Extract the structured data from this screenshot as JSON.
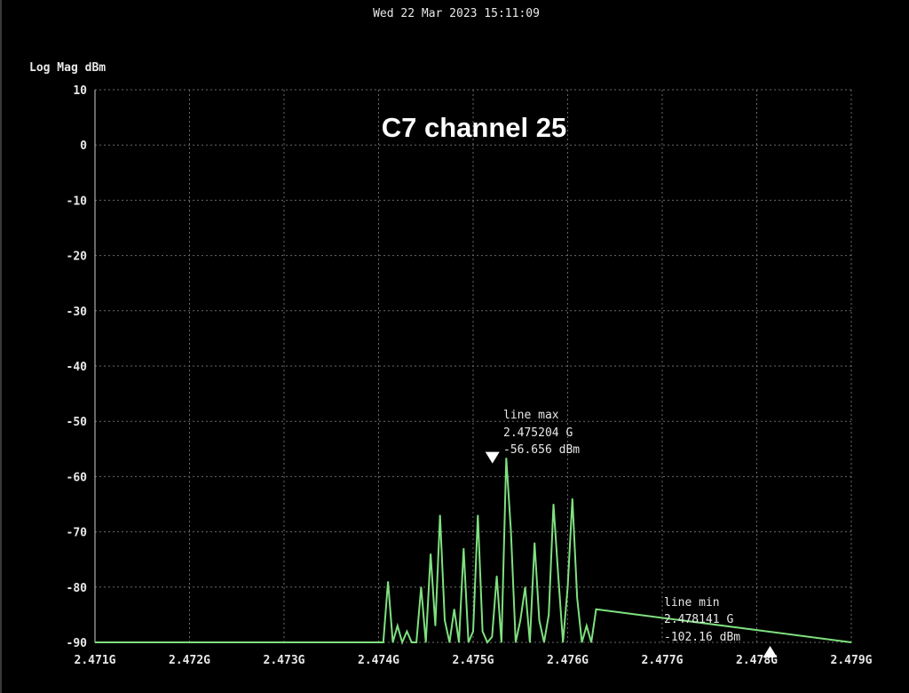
{
  "timestamp": "Wed 22 Mar 2023 15:11:09",
  "colors": {
    "background": "#000000",
    "trace": "#7fe07f",
    "text": "#e8e8e8",
    "grid": "#6a6a6a",
    "marker": "#ffffff"
  },
  "chart_data": {
    "type": "line",
    "title": "C7 channel 25",
    "ylabel": "Log Mag dBm",
    "xlabel": "",
    "xlim": [
      2.471,
      2.479
    ],
    "ylim": [
      -90,
      10
    ],
    "grid": true,
    "x_tick_values": [
      2.471,
      2.472,
      2.473,
      2.474,
      2.475,
      2.476,
      2.477,
      2.478,
      2.479
    ],
    "x_tick_labels": [
      "2.471G",
      "2.472G",
      "2.473G",
      "2.474G",
      "2.475G",
      "2.476G",
      "2.477G",
      "2.478G",
      "2.479G"
    ],
    "y_tick_values": [
      10,
      0,
      -10,
      -20,
      -30,
      -40,
      -50,
      -60,
      -70,
      -80,
      -90
    ],
    "y_tick_labels": [
      "10",
      "0",
      "-10",
      "-20",
      "-30",
      "-40",
      "-50",
      "-60",
      "-70",
      "-80",
      "-90"
    ],
    "series": [
      {
        "x": [
          2.471,
          2.474,
          2.47405,
          2.4741,
          2.47415,
          2.4742,
          2.47425,
          2.4743,
          2.47435,
          2.4744,
          2.47445,
          2.4745,
          2.47455,
          2.4746,
          2.47465,
          2.4747,
          2.47475,
          2.4748,
          2.47485,
          2.4749,
          2.47495,
          2.475,
          2.47505,
          2.4751,
          2.47515,
          2.4752,
          2.47525,
          2.4753,
          2.47535,
          2.4754,
          2.47545,
          2.4755,
          2.47555,
          2.4756,
          2.47565,
          2.4757,
          2.47575,
          2.4758,
          2.47585,
          2.4759,
          2.47595,
          2.476,
          2.47605,
          2.4761,
          2.47615,
          2.4762,
          2.47625,
          2.4763,
          2.479
        ],
        "y": [
          -90,
          -90,
          -90,
          -79,
          -90,
          -87,
          -90,
          -88,
          -90,
          -90,
          -80,
          -90,
          -74,
          -87,
          -67,
          -86,
          -90,
          -84,
          -90,
          -73,
          -90,
          -88,
          -67,
          -88,
          -90,
          -89,
          -78,
          -90,
          -56.656,
          -70,
          -90,
          -86,
          -80,
          -90,
          -72,
          -86,
          -90,
          -85,
          -65,
          -78,
          -90,
          -80,
          -64,
          -82,
          -90,
          -87,
          -90,
          -84,
          -90
        ]
      }
    ],
    "marker_max": {
      "label": "line max",
      "freq": "2.475204 G",
      "level": "-56.656 dBm",
      "x": 2.475204,
      "y": -56.656
    },
    "marker_min": {
      "label": "line min",
      "freq": "2.478141 G",
      "level": "-102.16 dBm",
      "x": 2.478141,
      "y": -102.16
    }
  }
}
